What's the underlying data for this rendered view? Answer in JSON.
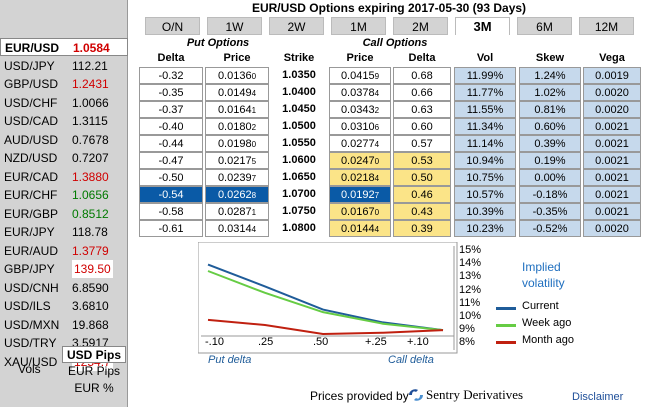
{
  "title": "EUR/USD Options expiring 2017-05-30 (93 Days)",
  "currency_list": [
    {
      "pair": "EUR/USD",
      "rate": "1.0584",
      "color": "red",
      "selected": true
    },
    {
      "pair": "USD/JPY",
      "rate": "112.21",
      "color": "black"
    },
    {
      "pair": "GBP/USD",
      "rate": "1.2431",
      "color": "red"
    },
    {
      "pair": "USD/CHF",
      "rate": "1.0066",
      "color": "black"
    },
    {
      "pair": "USD/CAD",
      "rate": "1.3115",
      "color": "black"
    },
    {
      "pair": "AUD/USD",
      "rate": "0.7678",
      "color": "black"
    },
    {
      "pair": "NZD/USD",
      "rate": "0.7207",
      "color": "black"
    },
    {
      "pair": "EUR/CAD",
      "rate": "1.3880",
      "color": "red"
    },
    {
      "pair": "EUR/CHF",
      "rate": "1.0656",
      "color": "green"
    },
    {
      "pair": "EUR/GBP",
      "rate": "0.8512",
      "color": "green"
    },
    {
      "pair": "EUR/JPY",
      "rate": "118.78",
      "color": "black"
    },
    {
      "pair": "EUR/AUD",
      "rate": "1.3779",
      "color": "red"
    },
    {
      "pair": "GBP/JPY",
      "rate": "139.50",
      "color": "redbox"
    },
    {
      "pair": "USD/CNH",
      "rate": "6.8590",
      "color": "black"
    },
    {
      "pair": "USD/ILS",
      "rate": "3.6810",
      "color": "black"
    },
    {
      "pair": "USD/MXN",
      "rate": "19.868",
      "color": "black"
    },
    {
      "pair": "USD/TRY",
      "rate": "3.5917",
      "color": "black"
    },
    {
      "pair": "XAU/USD",
      "rate": "1254.7",
      "color": "redbox"
    }
  ],
  "vols_label": "Vols",
  "pips_options": [
    "USD Pips",
    "EUR Pips",
    "EUR %"
  ],
  "tabs": [
    "O/N",
    "1W",
    "2W",
    "1M",
    "2M",
    "3M",
    "6M",
    "12M"
  ],
  "active_tab": "3M",
  "headers": {
    "put_group": "Put Options",
    "call_group": "Call Options",
    "delta": "Delta",
    "price": "Price",
    "strike": "Strike",
    "vol": "Vol",
    "skew": "Skew",
    "vega": "Vega"
  },
  "rows": [
    {
      "put_delta": "-0.32",
      "put_price": "0.0136",
      "put_small": "0",
      "strike": "1.0350",
      "call_price": "0.0415",
      "call_small": "9",
      "call_delta": "0.68",
      "vol": "11.99%",
      "skew": "1.24%",
      "vega": "0.0019",
      "side": "put"
    },
    {
      "put_delta": "-0.35",
      "put_price": "0.0149",
      "put_small": "4",
      "strike": "1.0400",
      "call_price": "0.0378",
      "call_small": "4",
      "call_delta": "0.66",
      "vol": "11.77%",
      "skew": "1.02%",
      "vega": "0.0020",
      "side": "put"
    },
    {
      "put_delta": "-0.37",
      "put_price": "0.0164",
      "put_small": "1",
      "strike": "1.0450",
      "call_price": "0.0343",
      "call_small": "2",
      "call_delta": "0.63",
      "vol": "11.55%",
      "skew": "0.81%",
      "vega": "0.0020",
      "side": "put"
    },
    {
      "put_delta": "-0.40",
      "put_price": "0.0180",
      "put_small": "2",
      "strike": "1.0500",
      "call_price": "0.0310",
      "call_small": "6",
      "call_delta": "0.60",
      "vol": "11.34%",
      "skew": "0.60%",
      "vega": "0.0021",
      "side": "put"
    },
    {
      "put_delta": "-0.44",
      "put_price": "0.0198",
      "put_small": "0",
      "strike": "1.0550",
      "call_price": "0.0277",
      "call_small": "4",
      "call_delta": "0.57",
      "vol": "11.14%",
      "skew": "0.39%",
      "vega": "0.0021",
      "side": "put"
    },
    {
      "put_delta": "-0.47",
      "put_price": "0.0217",
      "put_small": "5",
      "strike": "1.0600",
      "call_price": "0.0247",
      "call_small": "0",
      "call_delta": "0.53",
      "vol": "10.94%",
      "skew": "0.19%",
      "vega": "0.0021",
      "side": "call"
    },
    {
      "put_delta": "-0.50",
      "put_price": "0.0239",
      "put_small": "7",
      "strike": "1.0650",
      "call_price": "0.0218",
      "call_small": "4",
      "call_delta": "0.50",
      "vol": "10.75%",
      "skew": "0.00%",
      "vega": "0.0021",
      "side": "call"
    },
    {
      "put_delta": "-0.54",
      "put_price": "0.0262",
      "put_small": "8",
      "strike": "1.0700",
      "call_price": "0.0192",
      "call_small": "7",
      "call_delta": "0.46",
      "vol": "10.57%",
      "skew": "-0.18%",
      "vega": "0.0021",
      "side": "atm"
    },
    {
      "put_delta": "-0.58",
      "put_price": "0.0287",
      "put_small": "1",
      "strike": "1.0750",
      "call_price": "0.0167",
      "call_small": "0",
      "call_delta": "0.43",
      "vol": "10.39%",
      "skew": "-0.35%",
      "vega": "0.0021",
      "side": "call"
    },
    {
      "put_delta": "-0.61",
      "put_price": "0.0314",
      "put_small": "4",
      "strike": "1.0800",
      "call_price": "0.0144",
      "call_small": "4",
      "call_delta": "0.39",
      "vol": "10.23%",
      "skew": "-0.52%",
      "vega": "0.0020",
      "side": "call"
    }
  ],
  "chart_data": {
    "type": "line",
    "title": "",
    "legend_title": "Implied volatility",
    "x_tick_labels": [
      ".10",
      ".25",
      ".50",
      ".25",
      ".10"
    ],
    "x_prefix_labels": [
      "-",
      "",
      "",
      "+",
      "+"
    ],
    "y_tick_labels": [
      "15%",
      "14%",
      "13%",
      "12%",
      "11%",
      "10%",
      "9%",
      "8%"
    ],
    "ylim": [
      8,
      15
    ],
    "x": [
      -0.1,
      -0.25,
      0.5,
      0.25,
      0.1
    ],
    "xlabel_left": "Put delta",
    "xlabel_right": "Call delta",
    "series": [
      {
        "name": "Current",
        "color": "#1f5c99",
        "values": [
          14.1,
          12.4,
          10.6,
          9.6,
          9.0
        ]
      },
      {
        "name": "Week ago",
        "color": "#66cc44",
        "values": [
          13.6,
          11.9,
          10.4,
          9.5,
          9.0
        ]
      },
      {
        "name": "Month ago",
        "color": "#c02010",
        "values": [
          9.8,
          9.4,
          8.7,
          8.8,
          9.0
        ]
      }
    ]
  },
  "footer": {
    "provided_by": "Prices provided by",
    "brand": "Sentry Derivatives",
    "disclaimer": "Disclaimer"
  }
}
